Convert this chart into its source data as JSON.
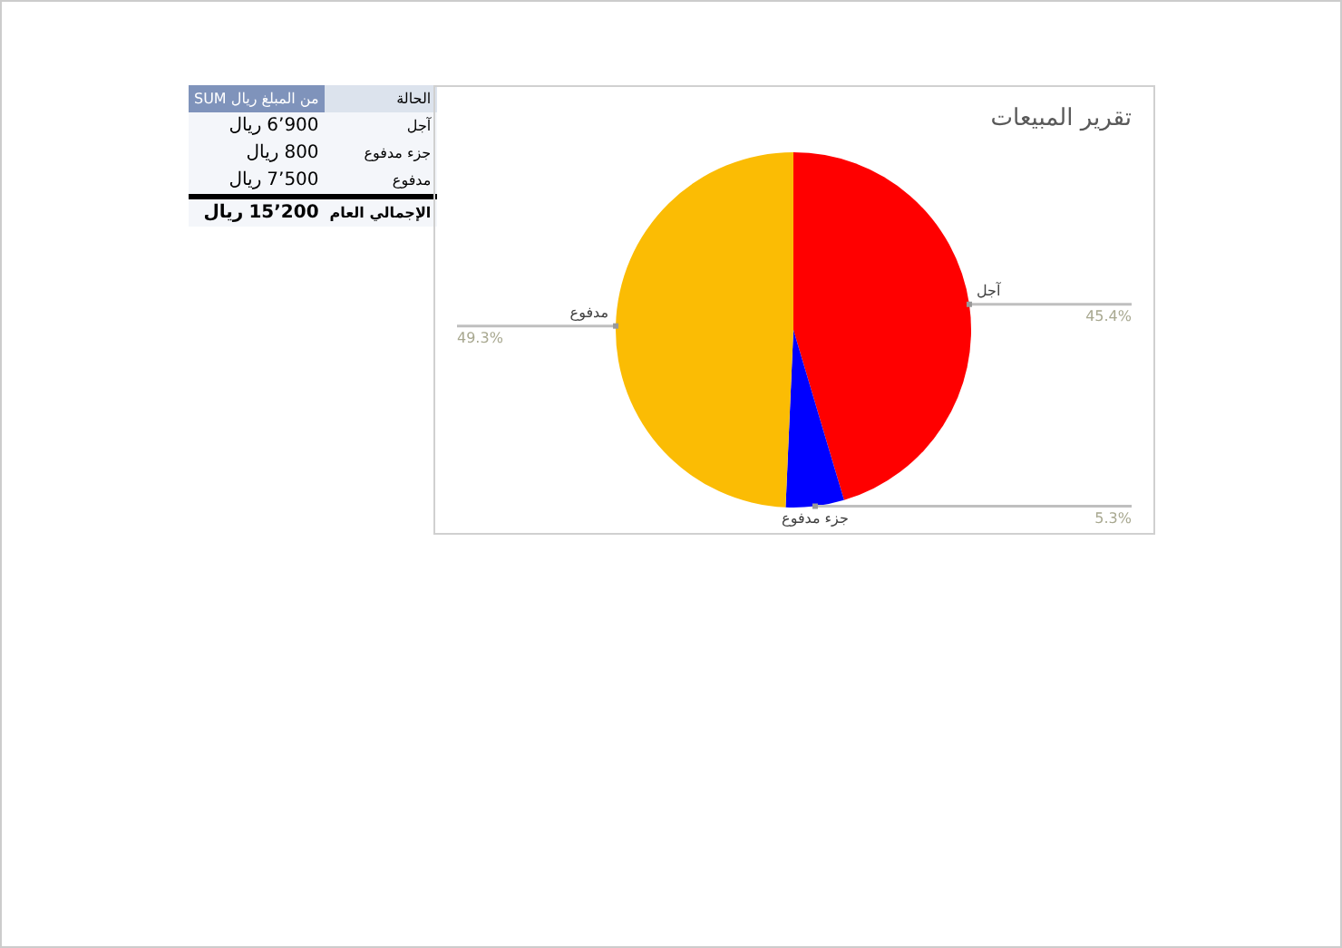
{
  "chart_data": [
    {
      "type": "other",
      "annotations": [
        "الحالة",
        "من المبلغ ريال SUM",
        "الإجمالي العام",
        "ريال 15’200"
      ],
      "categories": [
        "آجل",
        "جزء مدفوع",
        "مدفوع"
      ],
      "value_labels": [
        "ريال 6’900",
        "ريال 800",
        "ريال 7’500"
      ]
    },
    {
      "type": "pie",
      "title": "تقرير المبيعات",
      "categories": [
        "آجل",
        "جزء مدفوع",
        "مدفوع"
      ],
      "values": [
        45.4,
        5.3,
        49.3
      ],
      "value_labels": [
        "45.4%",
        "5.3%",
        "49.3%"
      ],
      "colors": [
        "#ff0000",
        "#0000ff",
        "#fbbc04"
      ],
      "data_labels": true,
      "legend": false
    }
  ]
}
